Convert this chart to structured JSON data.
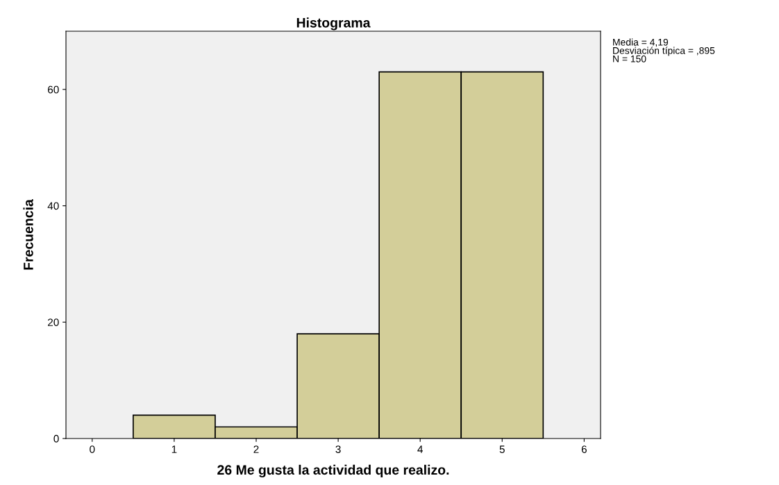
{
  "chart_data": {
    "type": "histogram",
    "title": "Histograma",
    "xlabel": "26 Me gusta la actividad que realizo.",
    "ylabel": "Frecuencia",
    "bins": [
      0.5,
      1.5,
      2.5,
      3.5,
      4.5,
      5.5
    ],
    "values": [
      4,
      2,
      18,
      63,
      63
    ],
    "color": "#d3ce99",
    "xlim": [
      -0.32,
      6.2
    ],
    "xticks": [
      0,
      1,
      2,
      3,
      4,
      5,
      6
    ],
    "ylim": [
      0,
      70
    ],
    "yticks": [
      0,
      20,
      40,
      60
    ],
    "grid": false,
    "annotations": [
      "Media = 4,19",
      "Desviación típica = ,895",
      "N = 150"
    ]
  }
}
